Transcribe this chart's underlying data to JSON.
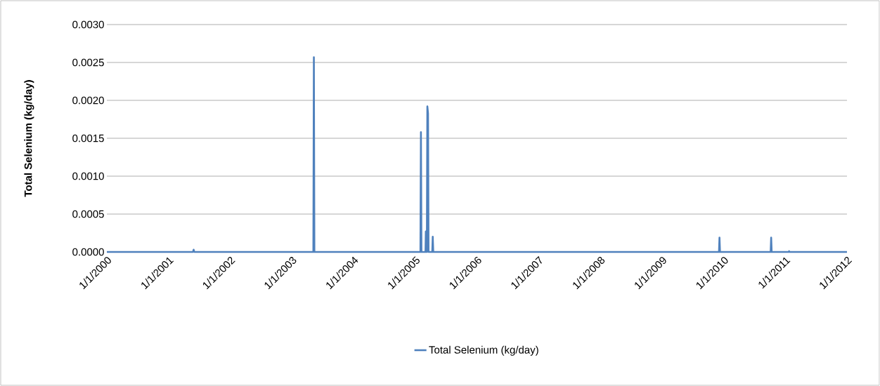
{
  "chart_data": {
    "type": "line",
    "ylabel": "Total Selenium (kg/day)",
    "x": [
      "2000-01-01",
      "2001-05-25",
      "2001-05-29",
      "2001-06-02",
      "2003-05-08",
      "2003-05-11",
      "2003-05-14",
      "2005-01-31",
      "2005-02-03",
      "2005-02-06",
      "2005-03-02",
      "2005-03-04",
      "2005-03-06",
      "2005-03-10",
      "2005-03-13",
      "2005-03-17",
      "2005-03-20",
      "2005-04-11",
      "2005-04-14",
      "2005-04-17",
      "2009-12-04",
      "2009-12-07",
      "2009-12-10",
      "2010-10-06",
      "2010-10-09",
      "2010-10-12",
      "2011-01-20",
      "2011-01-23",
      "2011-01-26",
      "2012-01-01"
    ],
    "series": [
      {
        "name": "Total Selenium (kg/day)",
        "color": "#4f81bd",
        "values": [
          0,
          0,
          3e-05,
          0,
          0,
          0.00257,
          0,
          0,
          0.00158,
          0,
          0,
          0.00027,
          0,
          0,
          0.00192,
          0.00183,
          0,
          0,
          0.0002,
          0,
          0,
          0.00019,
          0,
          0,
          0.00019,
          0,
          0,
          1e-05,
          0,
          0
        ]
      }
    ],
    "xlim": [
      "2000-01-01",
      "2012-01-01"
    ],
    "xticks": [
      {
        "value": "2000-01-01",
        "label": "1/1/2000"
      },
      {
        "value": "2001-01-01",
        "label": "1/1/2001"
      },
      {
        "value": "2002-01-01",
        "label": "1/1/2002"
      },
      {
        "value": "2003-01-01",
        "label": "1/1/2003"
      },
      {
        "value": "2004-01-01",
        "label": "1/1/2004"
      },
      {
        "value": "2005-01-01",
        "label": "1/1/2005"
      },
      {
        "value": "2006-01-01",
        "label": "1/1/2006"
      },
      {
        "value": "2007-01-01",
        "label": "1/1/2007"
      },
      {
        "value": "2008-01-01",
        "label": "1/1/2008"
      },
      {
        "value": "2009-01-01",
        "label": "1/1/2009"
      },
      {
        "value": "2010-01-01",
        "label": "1/1/2010"
      },
      {
        "value": "2011-01-01",
        "label": "1/1/2011"
      },
      {
        "value": "2012-01-01",
        "label": "1/1/2012"
      }
    ],
    "ylim": [
      0,
      0.003
    ],
    "yticks": [
      {
        "value": 0,
        "label": "0.0000"
      },
      {
        "value": 0.0005,
        "label": "0.0005"
      },
      {
        "value": 0.001,
        "label": "0.0010"
      },
      {
        "value": 0.0015,
        "label": "0.0015"
      },
      {
        "value": 0.002,
        "label": "0.0020"
      },
      {
        "value": 0.0025,
        "label": "0.0025"
      },
      {
        "value": 0.003,
        "label": "0.0030"
      }
    ],
    "grid": "y",
    "legend": "bottom",
    "marker": "none",
    "line_style": "solid"
  }
}
